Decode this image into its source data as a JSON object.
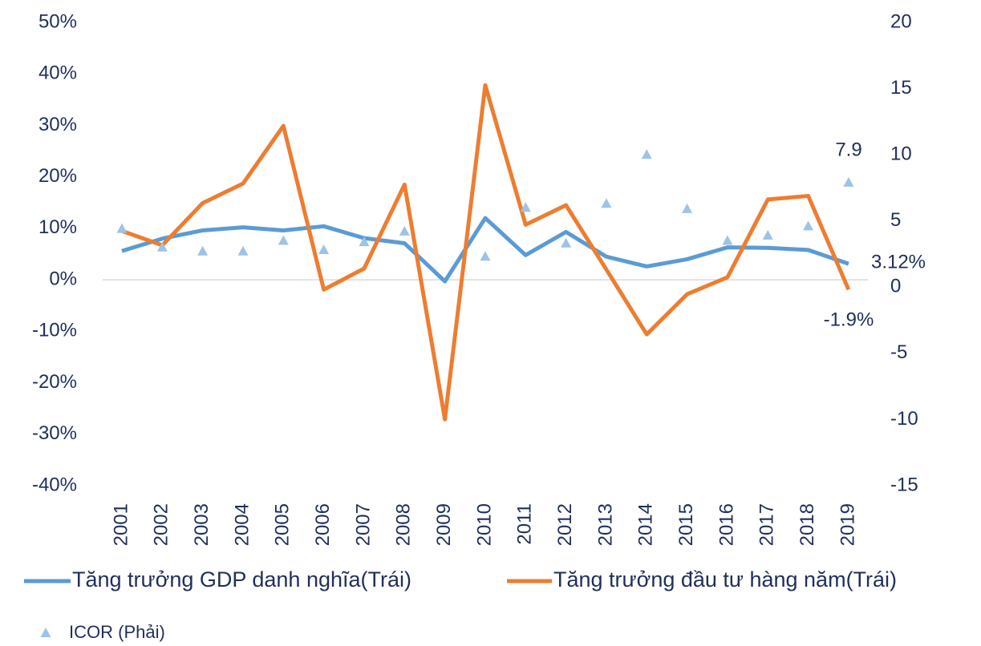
{
  "chart_data": {
    "type": "line",
    "categories": [
      "2001",
      "2002",
      "2003",
      "2004",
      "2005",
      "2006",
      "2007",
      "2008",
      "2009",
      "2010",
      "2011",
      "2012",
      "2013",
      "2014",
      "2015",
      "2016",
      "2017",
      "2018",
      "2019"
    ],
    "series": [
      {
        "name": "Tăng trưởng GDP danh nghĩa(Trái)",
        "color": "#5b9bd5",
        "type": "line",
        "values": [
          5.6,
          8.0,
          9.6,
          10.2,
          9.6,
          10.4,
          8.1,
          7.1,
          -0.3,
          12.0,
          4.8,
          9.3,
          4.5,
          2.6,
          4.0,
          6.3,
          6.2,
          5.8,
          3.12
        ],
        "value_labels": [
          null,
          null,
          null,
          null,
          null,
          null,
          null,
          null,
          null,
          null,
          null,
          null,
          null,
          null,
          null,
          null,
          null,
          null,
          "3.12%"
        ]
      },
      {
        "name": "Tăng trưởng đầu tư hàng năm(Trái)",
        "color": "#ed7d31",
        "type": "line",
        "values": [
          9.5,
          6.7,
          14.9,
          18.7,
          29.9,
          -1.9,
          2.2,
          18.5,
          -27.1,
          37.8,
          10.7,
          14.5,
          2.0,
          -10.6,
          -2.8,
          0.5,
          15.6,
          16.3,
          -1.9
        ],
        "value_labels": [
          null,
          null,
          null,
          null,
          null,
          null,
          null,
          null,
          null,
          null,
          null,
          null,
          null,
          null,
          null,
          null,
          null,
          null,
          "-1.9%"
        ]
      },
      {
        "name": "ICOR (Phải)",
        "color": "#9dc3e6",
        "type": "scatter",
        "axis": "y2",
        "values": [
          4.4,
          3.0,
          2.7,
          2.7,
          3.5,
          2.8,
          3.4,
          4.2,
          null,
          2.3,
          6.0,
          3.3,
          6.3,
          10.0,
          5.9,
          3.5,
          3.9,
          4.6,
          7.9
        ],
        "value_labels": [
          null,
          null,
          null,
          null,
          null,
          null,
          null,
          null,
          null,
          null,
          null,
          null,
          null,
          null,
          null,
          null,
          null,
          null,
          "7.9"
        ]
      }
    ],
    "ylim": [
      -40,
      50
    ],
    "yticks": [
      {
        "value": 50,
        "label": "50%"
      },
      {
        "value": 40,
        "label": "40%"
      },
      {
        "value": 30,
        "label": "30%"
      },
      {
        "value": 20,
        "label": "20%"
      },
      {
        "value": 10,
        "label": "10%"
      },
      {
        "value": 0,
        "label": "0%"
      },
      {
        "value": -10,
        "label": "-10%"
      },
      {
        "value": -20,
        "label": "-20%"
      },
      {
        "value": -30,
        "label": "-30%"
      },
      {
        "value": -40,
        "label": "-40%"
      }
    ],
    "y2lim": [
      -15,
      20
    ],
    "y2ticks": [
      20,
      15,
      10,
      5,
      0,
      -5,
      -10,
      -15
    ]
  }
}
